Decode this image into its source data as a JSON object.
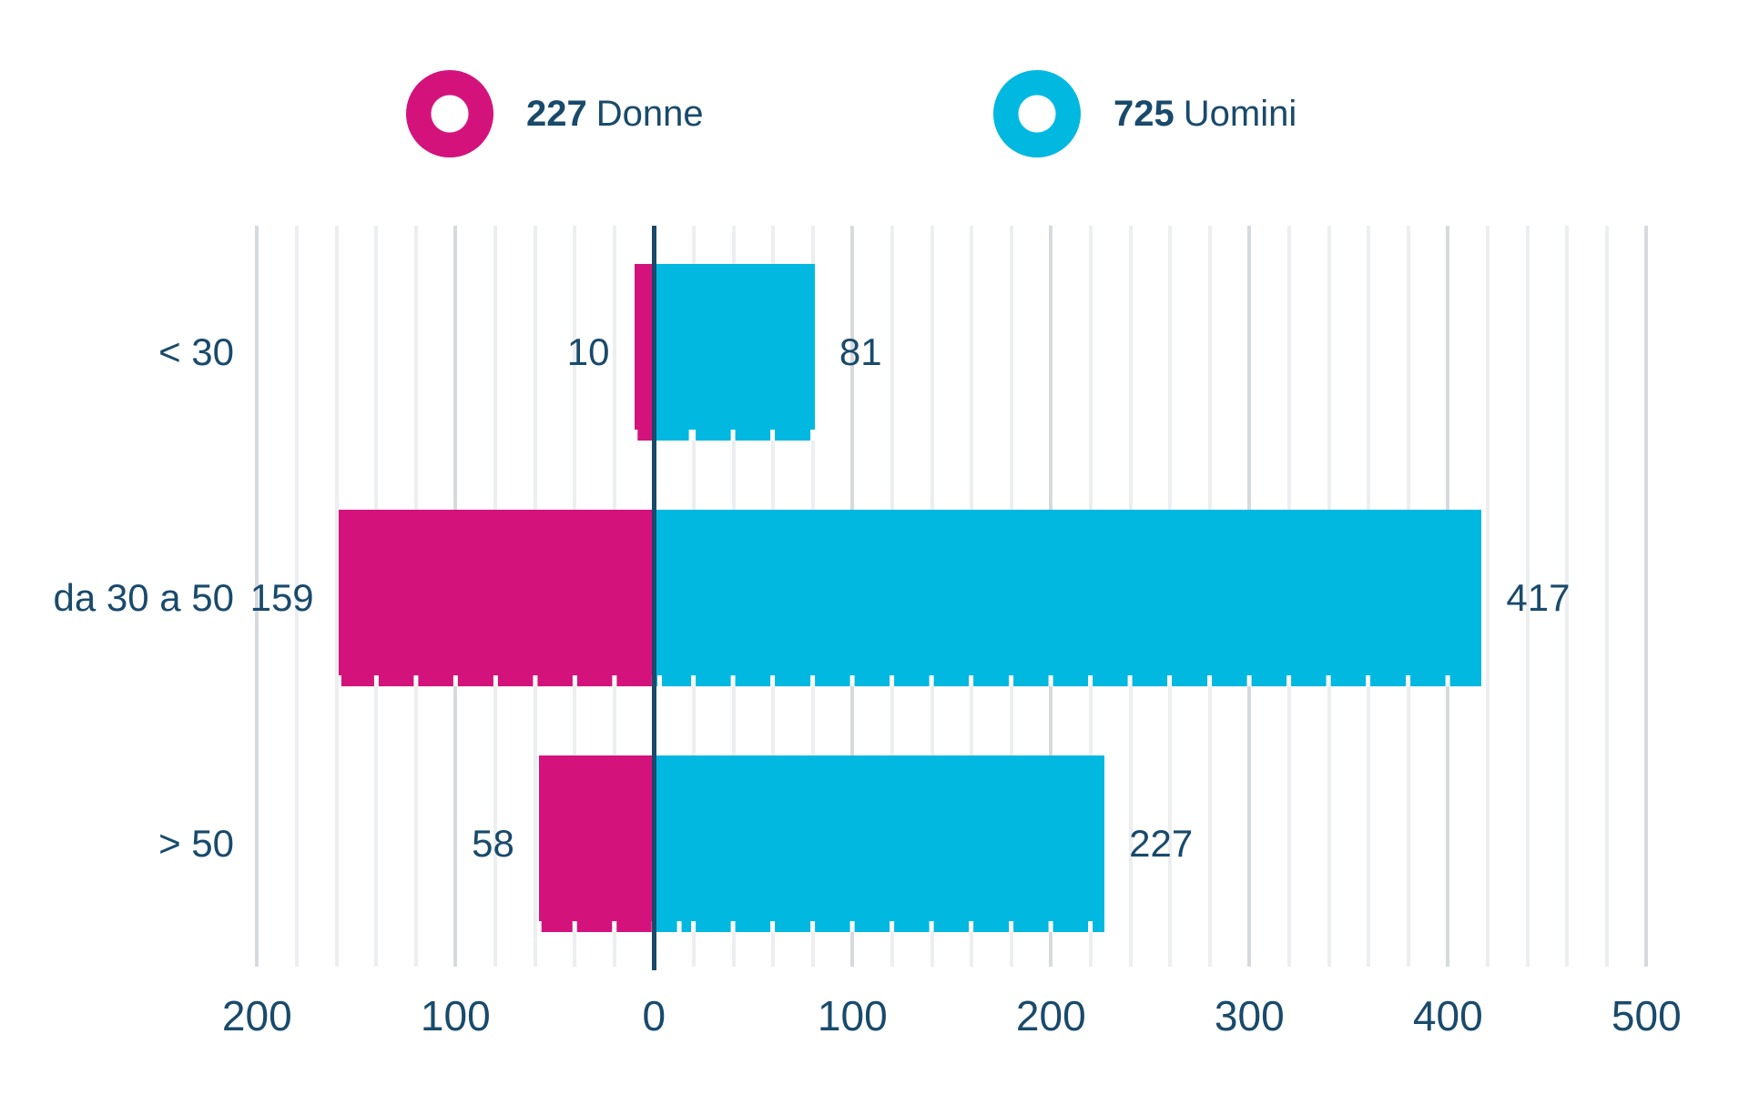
{
  "chart_data": {
    "type": "bar",
    "variant": "diverging-horizontal",
    "title": "",
    "categories": [
      "< 30",
      "da 30 a 50",
      "> 50"
    ],
    "series": [
      {
        "name": "Donne",
        "legend_value": "227",
        "color": "#d3137b",
        "side": "left",
        "values": [
          10,
          159,
          58
        ]
      },
      {
        "name": "Uomini",
        "legend_value": "725",
        "color": "#00b8e0",
        "side": "right",
        "values": [
          81,
          417,
          227
        ]
      }
    ],
    "x_axis": {
      "range": [
        -200,
        500
      ],
      "major_step": 100,
      "minor_step": 20,
      "tick_values": [
        -200,
        -100,
        0,
        100,
        200,
        300,
        400,
        500
      ],
      "tick_labels": [
        "200",
        "100",
        "0",
        "100",
        "200",
        "300",
        "400",
        "500"
      ]
    },
    "legend": {
      "position": "top",
      "items": [
        {
          "value": "227",
          "label": "Donne"
        },
        {
          "value": "725",
          "label": "Uomini"
        }
      ]
    },
    "colors": {
      "background": "#ffffff",
      "text": "#194a6b",
      "zero_line": "#194a6b",
      "grid_minor": "#eceeef",
      "grid_major": "#d7dadc",
      "donne": "#d3137b",
      "uomini": "#00b8e0"
    },
    "grid": {
      "horizontal": false,
      "vertical": true
    }
  }
}
